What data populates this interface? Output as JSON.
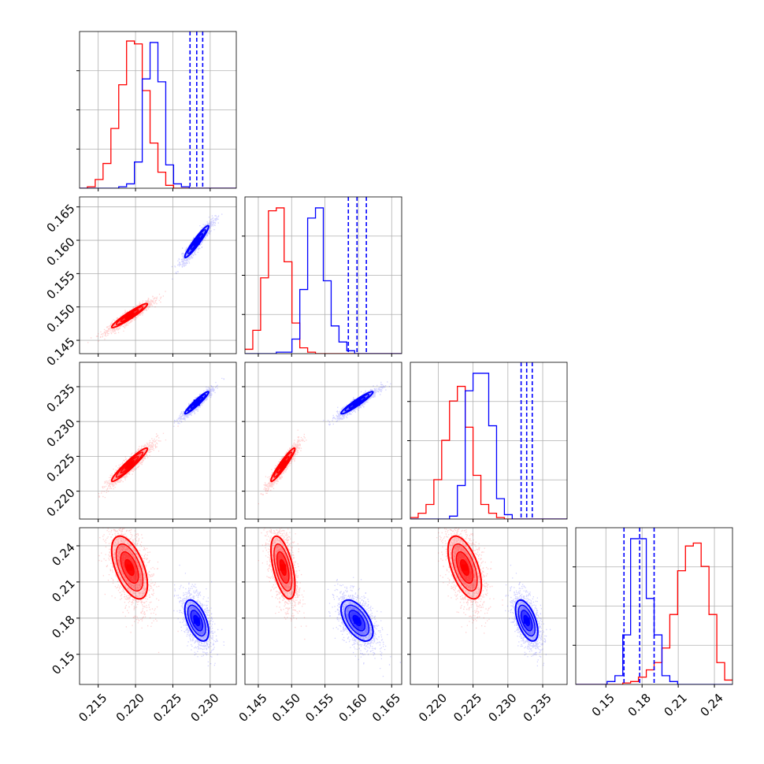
{
  "colors": {
    "series_a": "#ff0000",
    "series_b": "#0000ff",
    "grid": "#b0b0b0",
    "frame": "#000000"
  },
  "chart_data": {
    "type": "corner",
    "grid": true,
    "params": [
      {
        "range": [
          0.2125,
          0.2335
        ],
        "ticks": [
          0.215,
          0.22,
          0.225,
          0.23
        ],
        "tick_labels": [
          "0.215",
          "0.220",
          "0.225",
          "0.230"
        ]
      },
      {
        "range": [
          0.143,
          0.1665
        ],
        "ticks": [
          0.145,
          0.15,
          0.155,
          0.16,
          0.165
        ],
        "tick_labels": [
          "0.145",
          "0.150",
          "0.155",
          "0.160",
          "0.165"
        ]
      },
      {
        "range": [
          0.216,
          0.2385
        ],
        "ticks": [
          0.22,
          0.225,
          0.23,
          0.235
        ],
        "tick_labels": [
          "0.220",
          "0.225",
          "0.230",
          "0.235"
        ]
      },
      {
        "range": [
          0.125,
          0.255
        ],
        "ticks": [
          0.15,
          0.18,
          0.21,
          0.24
        ],
        "tick_labels": [
          "0.15",
          "0.18",
          "0.21",
          "0.24"
        ]
      }
    ],
    "series": [
      {
        "color": "#ff0000",
        "mean": [
          0.2192,
          0.1487,
          0.2238,
          0.222
        ],
        "sd": [
          0.0012,
          0.0009,
          0.0012,
          0.013
        ],
        "quantiles": [],
        "histograms": [
          [
            0,
            1,
            6,
            17,
            41,
            71,
            101,
            99,
            67,
            31,
            11,
            2,
            0,
            0,
            0,
            0,
            0,
            0,
            0,
            0
          ],
          [
            3,
            16,
            52,
            98,
            100,
            63,
            21,
            4,
            1,
            0,
            0,
            0,
            0,
            0,
            0,
            0,
            0,
            0,
            0,
            0
          ],
          [
            1,
            4,
            10,
            27,
            54,
            81,
            91,
            63,
            30,
            10,
            4,
            1,
            0,
            0,
            0,
            0,
            0,
            0,
            0,
            0
          ],
          [
            0,
            0,
            0,
            0,
            0,
            0,
            1,
            2,
            5,
            10,
            15,
            25,
            48,
            78,
            95,
            97,
            81,
            48,
            15,
            3
          ]
        ]
      },
      {
        "color": "#0000ff",
        "mean": [
          0.2282,
          0.1598,
          0.2327,
          0.178
        ],
        "sd": [
          0.0008,
          0.0012,
          0.0008,
          0.0085
        ],
        "quantiles": [
          [
            0.2273,
            0.2282,
            0.229
          ],
          [
            0.1585,
            0.1598,
            0.1612
          ],
          [
            0.2319,
            0.2327,
            0.2335
          ],
          [
            0.165,
            0.178,
            0.19
          ]
        ],
        "histograms": [
          [
            0,
            0,
            0,
            0,
            0,
            1,
            3,
            18,
            75,
            100,
            73,
            16,
            3,
            1,
            0,
            0,
            0,
            0,
            0,
            0
          ],
          [
            0,
            0,
            0,
            0,
            1,
            1,
            10,
            44,
            93,
            100,
            50,
            19,
            8,
            2,
            0,
            0,
            0,
            0,
            0,
            0
          ],
          [
            0,
            0,
            0,
            0,
            0,
            2,
            23,
            88,
            100,
            100,
            64,
            14,
            3,
            0,
            0,
            0,
            0,
            0,
            0,
            0
          ],
          [
            0,
            0,
            0,
            0,
            2,
            6,
            34,
            100,
            100,
            59,
            34,
            6,
            2,
            0,
            0,
            0,
            0,
            0,
            0,
            0
          ]
        ]
      }
    ]
  }
}
